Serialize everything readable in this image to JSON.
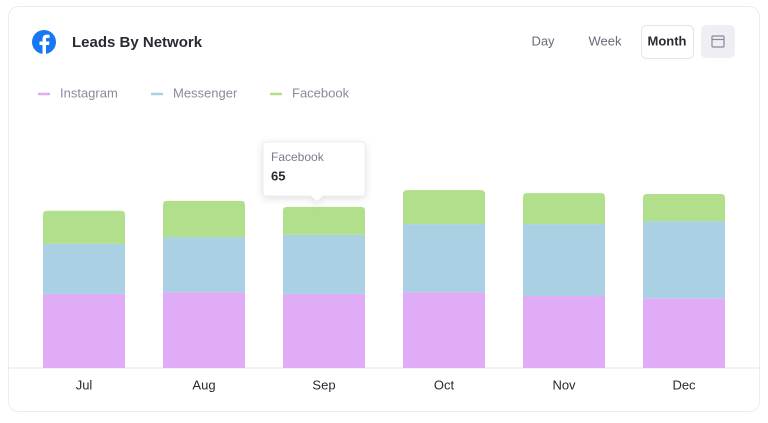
{
  "chart_data": {
    "type": "stacked-bar",
    "title": "Leads By Network",
    "range_options": [
      "Day",
      "Week",
      "Month"
    ],
    "categories": [
      "Jul",
      "Aug",
      "Sep",
      "Oct",
      "Nov",
      "Dec"
    ],
    "series": [
      {
        "name": "Instagram",
        "color": "#e0acf6",
        "values": [
          172,
          176,
          172,
          176,
          167,
          162
        ]
      },
      {
        "name": "Messenger",
        "color": "#a9d0e3",
        "values": [
          116,
          128,
          137,
          158,
          167,
          179
        ]
      },
      {
        "name": "Facebook",
        "color": "#b1df8b",
        "values": [
          77,
          84,
          65,
          79,
          72,
          63
        ]
      }
    ]
  }
}
